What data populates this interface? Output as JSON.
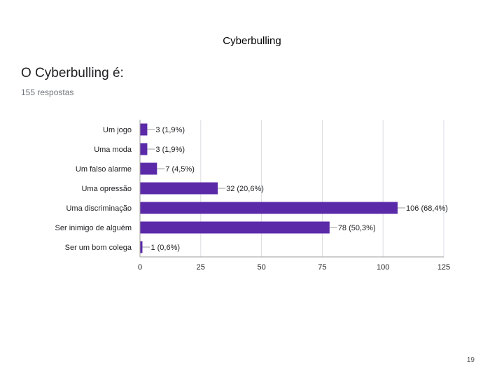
{
  "slide": {
    "title": "Cyberbulling",
    "page_number": "19"
  },
  "question": {
    "title": "O Cyberbulling é:",
    "responses": "155 respostas"
  },
  "colors": {
    "bar": "#5b2aa8",
    "grid": "#dadce0",
    "axis": "#9e9e9e",
    "label": "#202124"
  },
  "chart_data": {
    "type": "bar",
    "orientation": "horizontal",
    "categories": [
      "Um jogo",
      "Uma moda",
      "Um falso alarme",
      "Uma opressão",
      "Uma discriminação",
      "Ser inimigo de alguém",
      "Ser um bom colega"
    ],
    "values": [
      3,
      3,
      7,
      32,
      106,
      78,
      1
    ],
    "data_labels": [
      "3 (1,9%)",
      "3 (1,9%)",
      "7 (4,5%)",
      "32 (20,6%)",
      "106 (68,4%)",
      "78 (50,3%)",
      "1 (0,6%)"
    ],
    "xlim": [
      0,
      125
    ],
    "xticks": [
      0,
      25,
      50,
      75,
      100,
      125
    ],
    "grid": true
  }
}
